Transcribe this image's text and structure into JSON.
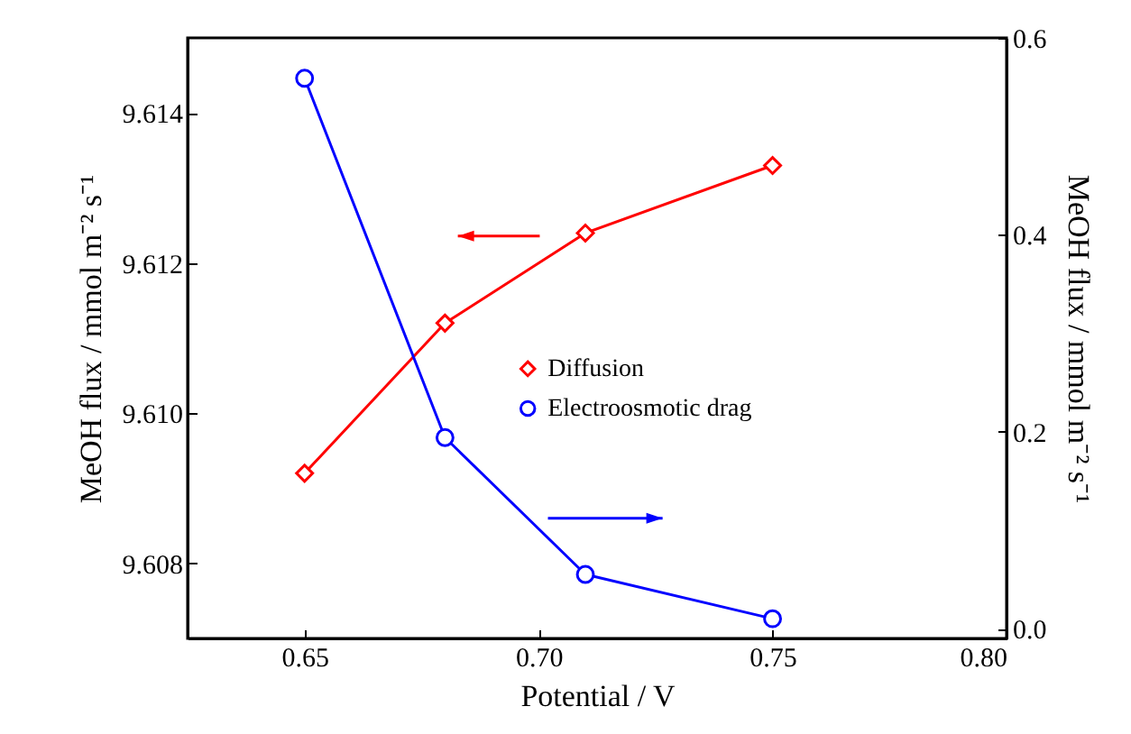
{
  "chart_data": {
    "type": "line",
    "xlabel": "Potential / V",
    "ylabel": "MeOH flux / mmol m⁻² s⁻¹",
    "y2label": "MeOH flux / mmol m⁻² s⁻¹",
    "x": [
      0.65,
      0.68,
      0.71,
      0.75
    ],
    "xlim": [
      0.625,
      0.8
    ],
    "xticks": [
      0.65,
      {
        "value": 0.7,
        "label": "0.70"
      },
      0.75,
      {
        "value": 0.8,
        "label": "0.80"
      }
    ],
    "ylim": [
      9.607,
      9.615
    ],
    "yticks": [
      9.608,
      {
        "value": 9.61,
        "label": "9.610"
      },
      9.612,
      9.614
    ],
    "y2lim": [
      -0.01,
      0.6
    ],
    "y2ticks": [
      {
        "value": 0,
        "label": "0.0"
      },
      0.2,
      0.4,
      0.6
    ],
    "legend": "right",
    "grid": false,
    "series": [
      {
        "name": "Diffusion",
        "color": "#ff0000",
        "marker": "diamond",
        "values": [
          9.6092,
          9.6112,
          9.6124,
          9.6133
        ]
      },
      {
        "name": "Electroosmotic drag",
        "color": "#0000ff",
        "marker": "circle",
        "axis": "y2",
        "values": [
          0.559,
          0.194,
          0.055,
          0.01
        ]
      }
    ]
  }
}
